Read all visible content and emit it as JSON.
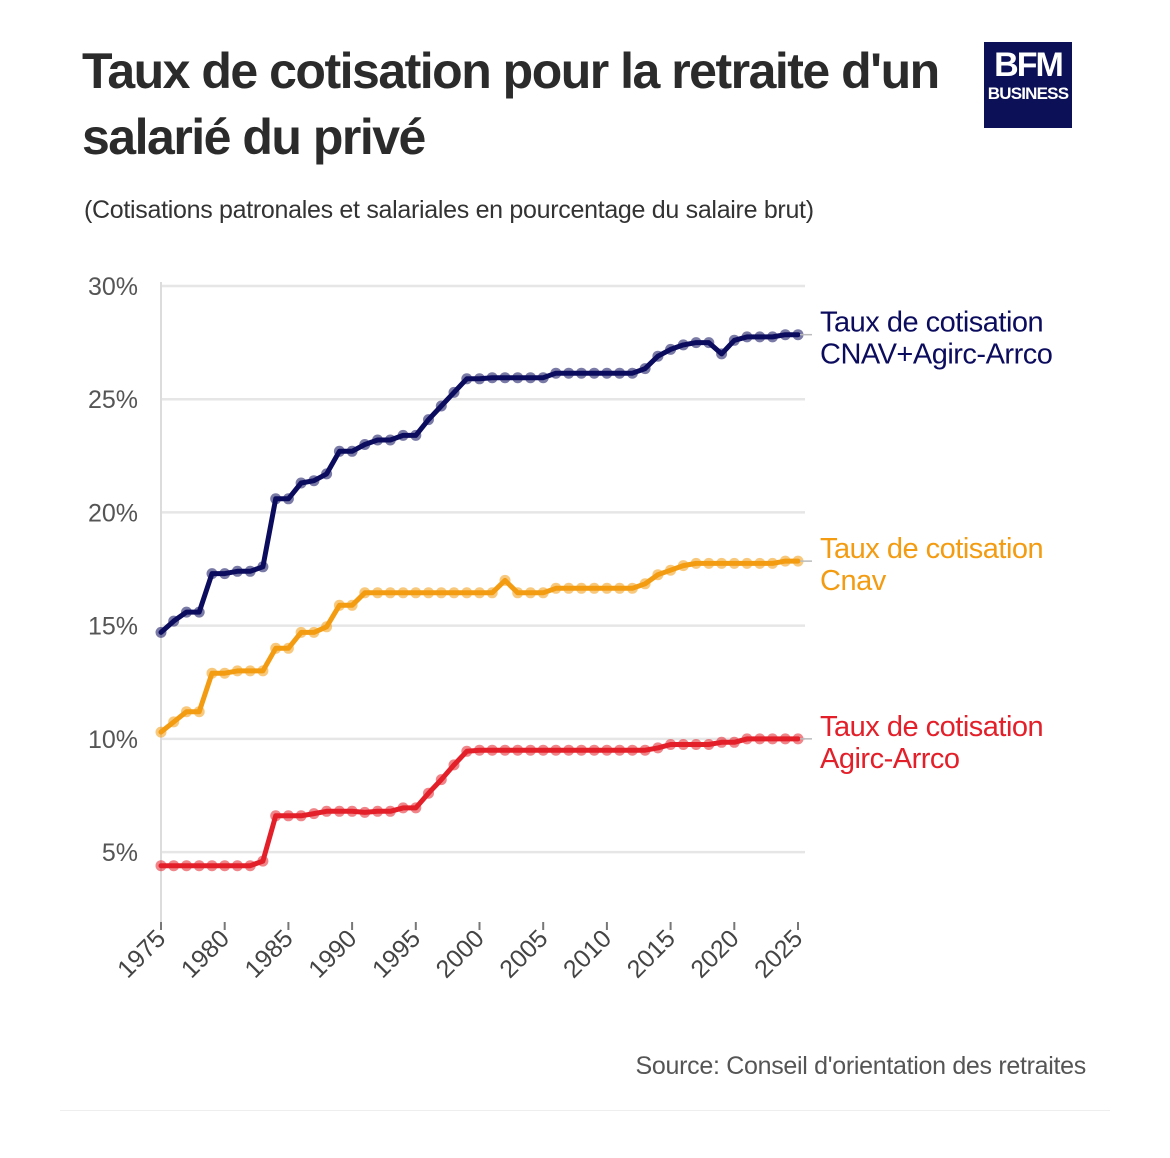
{
  "title": "Taux de cotisation pour la retraite d'un salarié du privé",
  "subtitle": "(Cotisations patronales et salariales en pourcentage du salaire brut)",
  "logo": {
    "line1": "BFM",
    "line2": "BUSINESS",
    "background": "#0c1056"
  },
  "source": "Source: Conseil d'orientation des retraites",
  "chart_data": {
    "type": "line",
    "xlabel": "",
    "ylabel": "",
    "xlim": [
      1975,
      2025
    ],
    "ylim": [
      2,
      30
    ],
    "y_ticks": [
      5,
      10,
      15,
      20,
      25,
      30
    ],
    "y_tick_labels": [
      "5%",
      "10%",
      "15%",
      "20%",
      "25%",
      "30%"
    ],
    "x_ticks": [
      1975,
      1980,
      1985,
      1990,
      1995,
      2000,
      2005,
      2010,
      2015,
      2020,
      2025
    ],
    "x_tick_labels": [
      "1975",
      "1980",
      "1985",
      "1990",
      "1995",
      "2000",
      "2005",
      "2010",
      "2015",
      "2020",
      "2025"
    ],
    "grid": "horizontal",
    "legend": "direct labels at right end of each line",
    "x": [
      1975,
      1976,
      1977,
      1978,
      1979,
      1980,
      1981,
      1982,
      1983,
      1984,
      1985,
      1986,
      1987,
      1988,
      1989,
      1990,
      1991,
      1992,
      1993,
      1994,
      1995,
      1996,
      1997,
      1998,
      1999,
      2000,
      2001,
      2002,
      2003,
      2004,
      2005,
      2006,
      2007,
      2008,
      2009,
      2010,
      2011,
      2012,
      2013,
      2014,
      2015,
      2016,
      2017,
      2018,
      2019,
      2020,
      2021,
      2022,
      2023,
      2024,
      2025
    ],
    "series": [
      {
        "name": "Taux de cotisation CNAV+Agirc-Arrco",
        "label_lines": [
          "Taux de cotisation",
          "CNAV+Agirc-Arrco"
        ],
        "color": "#0c0c5e",
        "values": [
          14.7,
          15.2,
          15.6,
          15.6,
          17.3,
          17.3,
          17.4,
          17.4,
          17.6,
          20.6,
          20.6,
          21.3,
          21.4,
          21.7,
          22.7,
          22.7,
          23.0,
          23.2,
          23.2,
          23.4,
          23.4,
          24.1,
          24.7,
          25.3,
          25.9,
          25.9,
          25.95,
          25.95,
          25.95,
          25.95,
          25.95,
          26.15,
          26.15,
          26.15,
          26.15,
          26.15,
          26.15,
          26.15,
          26.35,
          26.9,
          27.2,
          27.4,
          27.5,
          27.5,
          27.0,
          27.6,
          27.75,
          27.75,
          27.75,
          27.85,
          27.85
        ]
      },
      {
        "name": "Taux de cotisation Cnav",
        "label_lines": [
          "Taux de cotisation",
          "Cnav"
        ],
        "color": "#f39c12",
        "values": [
          10.3,
          10.75,
          11.2,
          11.2,
          12.9,
          12.9,
          13.0,
          13.0,
          13.0,
          14.0,
          14.0,
          14.7,
          14.7,
          14.95,
          15.9,
          15.9,
          16.45,
          16.45,
          16.45,
          16.45,
          16.45,
          16.45,
          16.45,
          16.45,
          16.45,
          16.45,
          16.45,
          17.0,
          16.45,
          16.45,
          16.45,
          16.65,
          16.65,
          16.65,
          16.65,
          16.65,
          16.65,
          16.65,
          16.85,
          17.25,
          17.45,
          17.65,
          17.75,
          17.75,
          17.75,
          17.75,
          17.75,
          17.75,
          17.75,
          17.85,
          17.85
        ]
      },
      {
        "name": "Taux de cotisation Agirc-Arrco",
        "label_lines": [
          "Taux de cotisation",
          "Agirc-Arrco"
        ],
        "color": "#e3202a",
        "values": [
          4.4,
          4.4,
          4.4,
          4.4,
          4.4,
          4.4,
          4.4,
          4.4,
          4.6,
          6.6,
          6.6,
          6.6,
          6.7,
          6.8,
          6.8,
          6.8,
          6.75,
          6.8,
          6.8,
          6.95,
          6.95,
          7.6,
          8.2,
          8.85,
          9.45,
          9.5,
          9.5,
          9.5,
          9.5,
          9.5,
          9.5,
          9.5,
          9.5,
          9.5,
          9.5,
          9.5,
          9.5,
          9.5,
          9.5,
          9.6,
          9.75,
          9.75,
          9.75,
          9.75,
          9.85,
          9.85,
          10.0,
          10.0,
          10.0,
          10.0,
          10.0
        ]
      }
    ]
  }
}
